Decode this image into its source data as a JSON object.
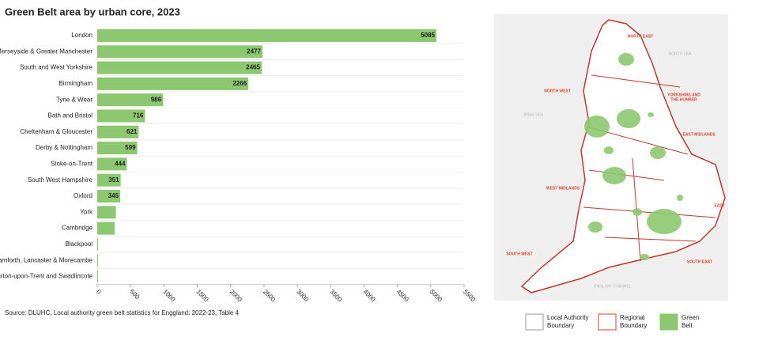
{
  "chart_data": {
    "type": "bar",
    "horizontal": true,
    "title": "Green Belt area by urban core, 2023",
    "categories": [
      "London",
      "Merseyside & Greater Manchester",
      "South and West Yorkshire",
      "Birmingham",
      "Tyne & Wear",
      "Bath and Bristol",
      "Cheltenham & Gloucester",
      "Derby & Nottingham",
      "Stoke-on-Trent",
      "South West Hampshire",
      "Oxford",
      "York",
      "Cambridge",
      "Blackpool",
      "Carnforth, Lancaster & Morecambe",
      "Burton-upon-Trent and Swadlincote"
    ],
    "values": [
      5085,
      2477,
      2465,
      2266,
      986,
      716,
      621,
      599,
      444,
      351,
      345,
      280,
      261,
      9,
      8,
      2
    ],
    "color": "#8cc870",
    "xlim": [
      0,
      5500
    ],
    "xticks": [
      0,
      500,
      1000,
      1500,
      2000,
      2500,
      3000,
      3500,
      4000,
      4500,
      5000,
      5500
    ],
    "source": "Source: DLUHC, Local authority green belt statistics for Enggland: 2022-23, Table 4"
  },
  "map": {
    "region_labels": [
      "NORTH EAST",
      "NORTH WEST",
      "YORKSHIRE AND",
      "THE HUMBER",
      "EAST MIDLANDS",
      "WEST MIDLANDS",
      "EAST",
      "SOUTH WEST",
      "SOUTH EAST"
    ],
    "sea_labels": [
      "NORTH SEA",
      "IRISH SEA",
      "ENGLISH CHANNEL"
    ],
    "legend": [
      [
        "Local Authority",
        "Boundary"
      ],
      [
        "Regional",
        "Boundary"
      ],
      [
        "Green",
        "Belt"
      ]
    ]
  }
}
